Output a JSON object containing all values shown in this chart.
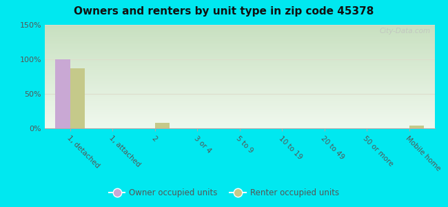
{
  "title": "Owners and renters by unit type in zip code 45378",
  "categories": [
    "1, detached",
    "1, attached",
    "2",
    "3 or 4",
    "5 to 9",
    "10 to 19",
    "20 to 49",
    "50 or more",
    "Mobile home"
  ],
  "owner_values": [
    100,
    0,
    0,
    0,
    0,
    0,
    0,
    0,
    0
  ],
  "renter_values": [
    87,
    0,
    8,
    0,
    0,
    0,
    0,
    0,
    4
  ],
  "owner_color": "#c9a8d4",
  "renter_color": "#c5c98a",
  "bg_outer": "#00e8f0",
  "ylim": [
    0,
    150
  ],
  "yticks": [
    0,
    50,
    100,
    150
  ],
  "ytick_labels": [
    "0%",
    "50%",
    "100%",
    "150%"
  ],
  "bar_width": 0.35,
  "watermark": "City-Data.com",
  "legend_owner": "Owner occupied units",
  "legend_renter": "Renter occupied units",
  "grid_color": "#ddddcc",
  "grad_top": "#c8e0c0",
  "grad_bottom": "#f0f8ee"
}
